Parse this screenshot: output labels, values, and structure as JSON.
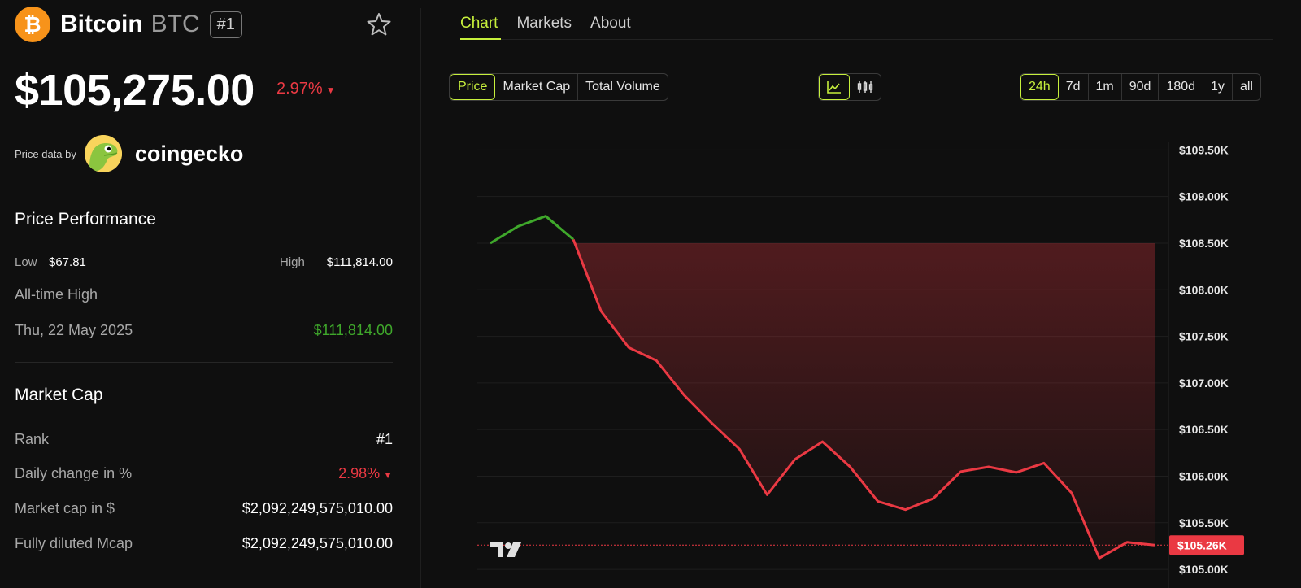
{
  "coin": {
    "name": "Bitcoin",
    "symbol": "BTC",
    "rank": "#1"
  },
  "price": "$105,275.00",
  "price_change": "2.97%",
  "price_data_label": "Price data by",
  "provider": "coingecko",
  "performance": {
    "title": "Price Performance",
    "low_label": "Low",
    "low_value": "$67.81",
    "high_label": "High",
    "high_value": "$111,814.00",
    "ath_label": "All-time High",
    "ath_date": "Thu, 22 May 2025",
    "ath_value": "$111,814.00"
  },
  "market_cap": {
    "title": "Market Cap",
    "rows": [
      {
        "label": "Rank",
        "value": "#1"
      },
      {
        "label": "Daily change in %",
        "value": "2.98%"
      },
      {
        "label": "Market cap in $",
        "value": "$2,092,249,575,010.00"
      },
      {
        "label": "Fully diluted Mcap",
        "value": "$2,092,249,575,010.00"
      }
    ]
  },
  "tabs": [
    "Chart",
    "Markets",
    "About"
  ],
  "metric_buttons": [
    "Price",
    "Market Cap",
    "Total Volume"
  ],
  "range_buttons": [
    "24h",
    "7d",
    "1m",
    "90d",
    "180d",
    "1y",
    "all"
  ],
  "colors": {
    "accent": "#c7f03c",
    "down": "#ea3943",
    "up": "#16c784",
    "line_up": "#3fa82b",
    "line_down": "#ea3943"
  },
  "chart_data": {
    "type": "area",
    "y_ticks": [
      "$109.50K",
      "$109.00K",
      "$108.50K",
      "$108.00K",
      "$107.50K",
      "$107.00K",
      "$106.50K",
      "$106.00K",
      "$105.50K",
      "$105.00K"
    ],
    "y_tick_values": [
      109500,
      109000,
      108500,
      108000,
      107500,
      107000,
      106500,
      106000,
      105500,
      105000
    ],
    "ylim": [
      104800,
      109800
    ],
    "current_label": "$105.26K",
    "current_value": 105260,
    "baseline_value": 108500,
    "values": [
      108500,
      108680,
      108790,
      108540,
      107770,
      107380,
      107240,
      106870,
      106570,
      106290,
      105800,
      106180,
      106370,
      106100,
      105730,
      105640,
      105760,
      106050,
      106100,
      106040,
      106140,
      105820,
      105120,
      105290,
      105260
    ]
  }
}
